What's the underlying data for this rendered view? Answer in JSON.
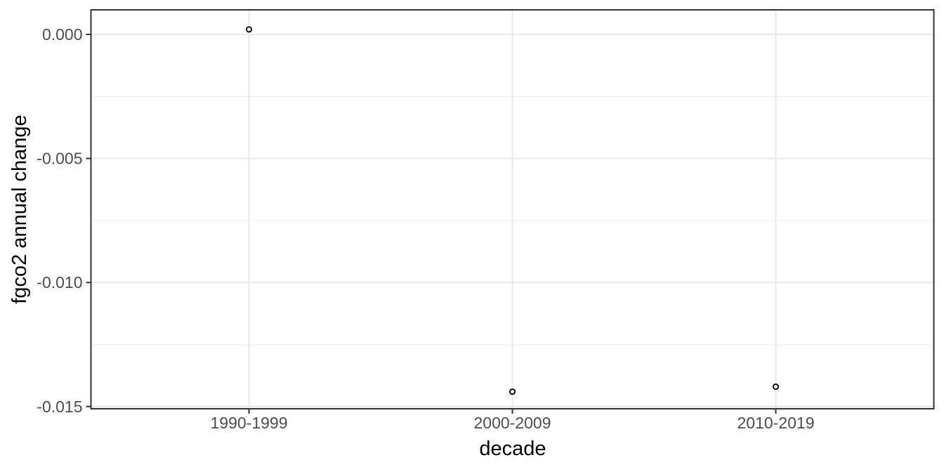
{
  "chart_data": {
    "type": "scatter",
    "title": "",
    "xlabel": "decade",
    "ylabel": "fgco2 annual change",
    "categories": [
      "1990-1999",
      "2000-2009",
      "2010-2019"
    ],
    "values": [
      0.0002,
      -0.0144,
      -0.0142
    ],
    "y_ticks": [
      0,
      -0.005,
      -0.01,
      -0.015
    ],
    "y_tick_labels": [
      "0.000",
      "-0.005",
      "-0.010",
      "-0.015"
    ],
    "ylim": [
      -0.01509,
      0.00099
    ],
    "grid": "major and minor horizontal, major vertical",
    "legend": "none",
    "marker": "open-circle",
    "theme": {
      "background": "#ffffff",
      "panel_background": "#ffffff",
      "grid_major_color": "#e8e8e8",
      "grid_minor_color": "#efefef",
      "panel_border_color": "#333333",
      "tick_mark_color": "#333333",
      "tick_label_color": "#4d4d4d",
      "axis_title_color": "#000000",
      "point_color": "#000000"
    }
  }
}
